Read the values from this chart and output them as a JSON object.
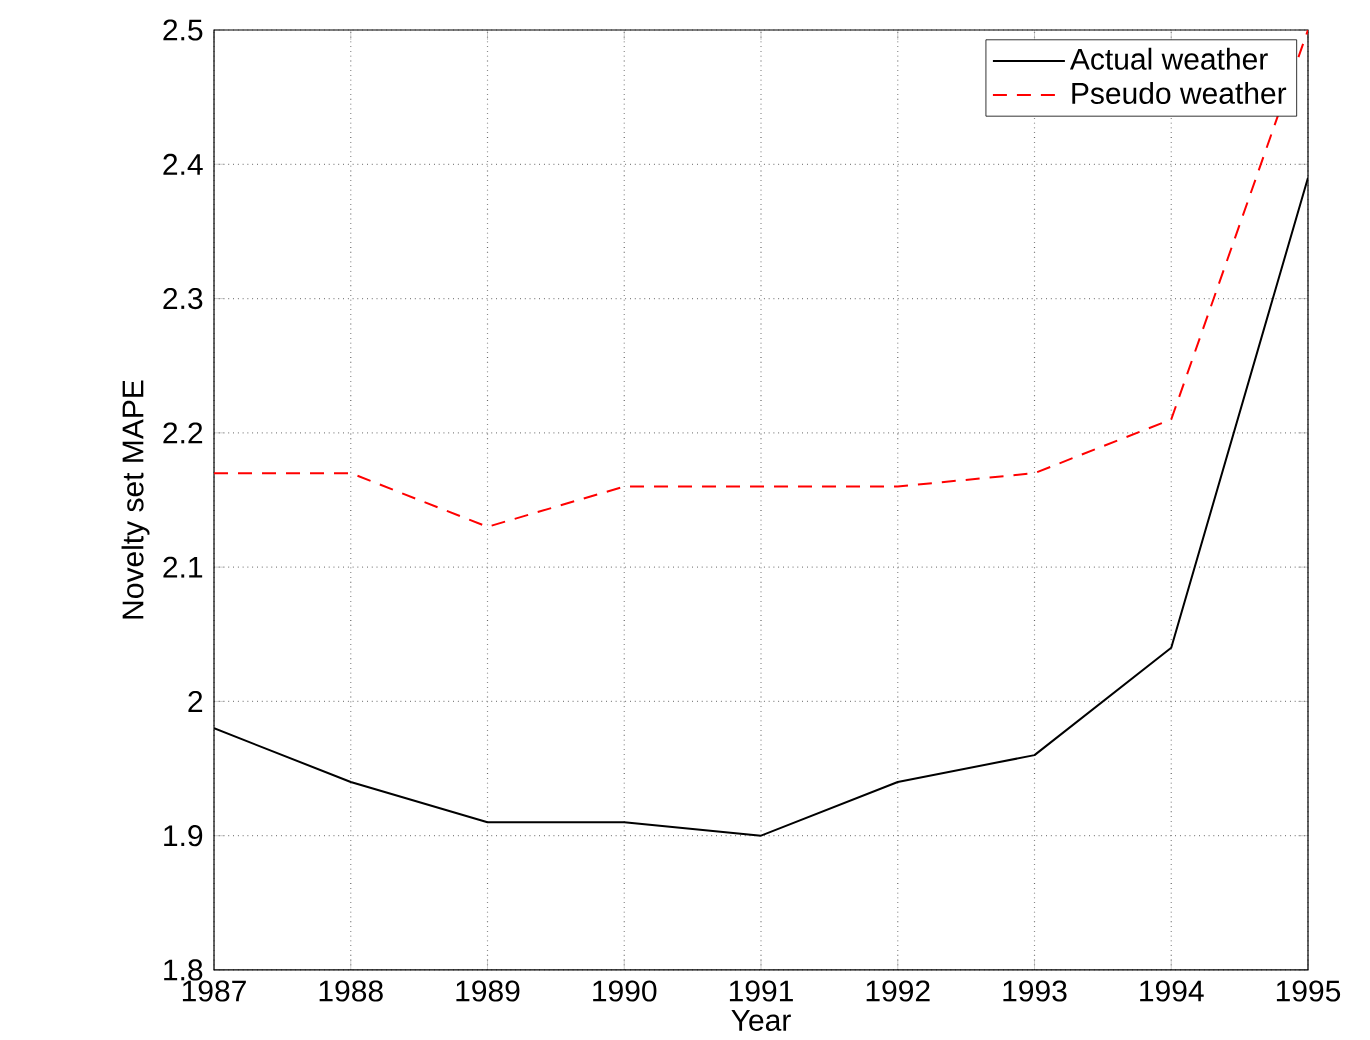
{
  "chart_data": {
    "type": "line",
    "xlabel": "Year",
    "ylabel": "Novelty set MAPE",
    "x": [
      1987,
      1988,
      1989,
      1990,
      1991,
      1992,
      1993,
      1994,
      1995
    ],
    "series": [
      {
        "name": "Actual weather",
        "color": "#000000",
        "line_style": "solid",
        "values": [
          1.98,
          1.94,
          1.91,
          1.91,
          1.9,
          1.94,
          1.96,
          2.04,
          2.39
        ]
      },
      {
        "name": "Pseudo weather",
        "color": "#ff0000",
        "line_style": "dashed",
        "values": [
          2.17,
          2.17,
          2.13,
          2.16,
          2.16,
          2.16,
          2.17,
          2.21,
          2.5
        ]
      }
    ],
    "xlim": [
      1987,
      1995
    ],
    "xticks": [
      1987,
      1988,
      1989,
      1990,
      1991,
      1992,
      1993,
      1994,
      1995
    ],
    "ylim": [
      1.8,
      2.5
    ],
    "yticks": [
      1.8,
      1.9,
      2,
      2.1,
      2.2,
      2.3,
      2.4,
      2.5
    ],
    "grid": true,
    "legend": "top right",
    "marker": "none"
  }
}
